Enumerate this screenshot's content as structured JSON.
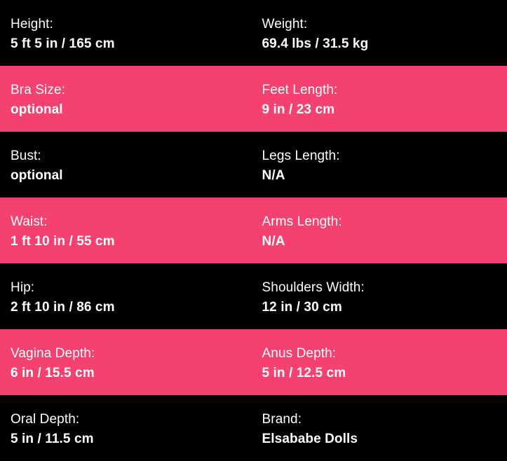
{
  "colors": {
    "row_black": "#000000",
    "row_pink": "#f54170",
    "text_white": "#ffffff"
  },
  "spec_table": {
    "rows": [
      {
        "style": "black",
        "cells": [
          {
            "label": "Height:",
            "value": "5 ft 5 in / 165 cm"
          },
          {
            "label": "Weight:",
            "value": "69.4 lbs / 31.5 kg"
          }
        ]
      },
      {
        "style": "pink",
        "cells": [
          {
            "label": "Bra Size:",
            "value": "optional"
          },
          {
            "label": "Feet Length:",
            "value": "9 in / 23 cm"
          }
        ]
      },
      {
        "style": "black",
        "cells": [
          {
            "label": "Bust:",
            "value": "optional"
          },
          {
            "label": "Legs Length:",
            "value": "N/A"
          }
        ]
      },
      {
        "style": "pink",
        "cells": [
          {
            "label": "Waist:",
            "value": "1 ft 10 in / 55 cm"
          },
          {
            "label": "Arms Length:",
            "value": "N/A"
          }
        ]
      },
      {
        "style": "black",
        "cells": [
          {
            "label": "Hip:",
            "value": "2 ft 10 in / 86 cm"
          },
          {
            "label": "Shoulders Width:",
            "value": "12 in / 30 cm"
          }
        ]
      },
      {
        "style": "pink",
        "cells": [
          {
            "label": "Vagina Depth:",
            "value": "6 in / 15.5 cm"
          },
          {
            "label": "Anus Depth:",
            "value": "5 in / 12.5 cm"
          }
        ]
      },
      {
        "style": "black",
        "cells": [
          {
            "label": "Oral Depth:",
            "value": "5 in / 11.5 cm"
          },
          {
            "label": "Brand:",
            "value": "Elsababe Dolls"
          }
        ]
      }
    ]
  }
}
